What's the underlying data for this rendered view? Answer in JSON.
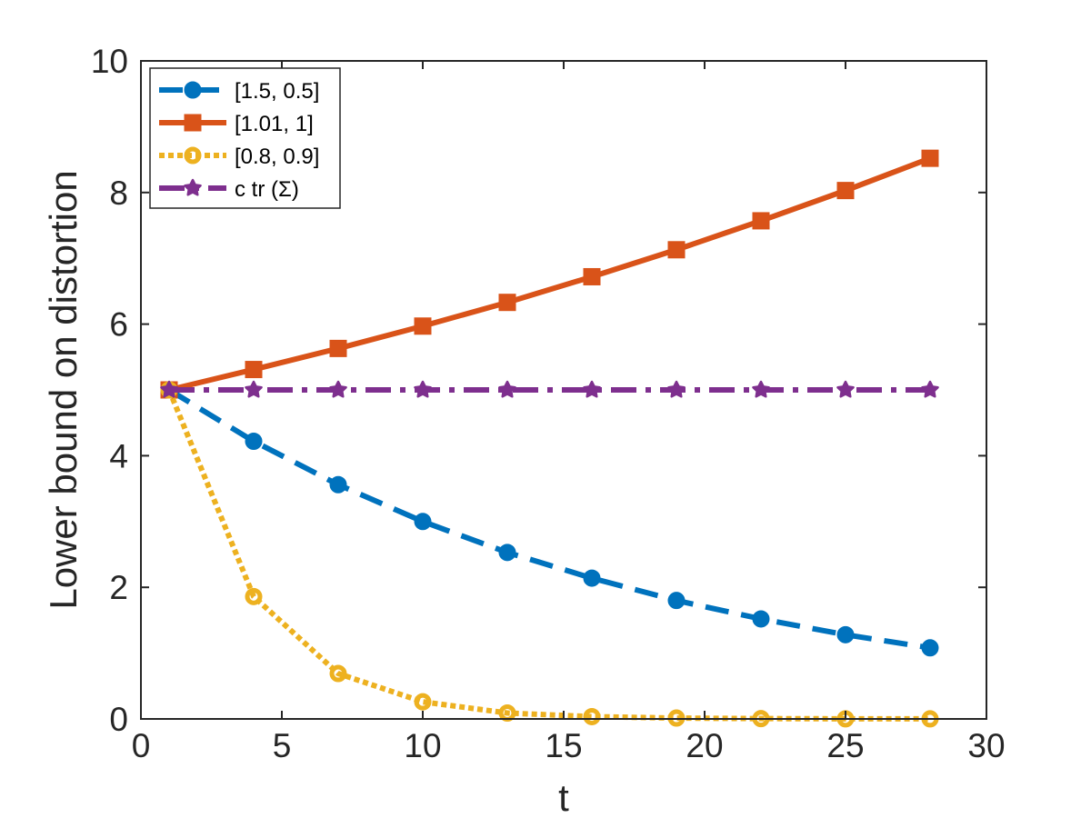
{
  "chart_data": {
    "type": "line",
    "xlabel": "t",
    "ylabel": "Lower bound on distortion",
    "xlim": [
      0,
      30
    ],
    "ylim": [
      0,
      10
    ],
    "xticks": [
      0,
      5,
      10,
      15,
      20,
      25,
      30
    ],
    "yticks": [
      0,
      2,
      4,
      6,
      8,
      10
    ],
    "xtick_labels": [
      "0",
      "5",
      "10",
      "15",
      "20",
      "25",
      "30"
    ],
    "ytick_labels": [
      "0",
      "2",
      "4",
      "6",
      "8",
      "10"
    ],
    "grid": false,
    "legend_position": "top-left",
    "x": [
      1,
      4,
      7,
      10,
      13,
      16,
      19,
      22,
      25,
      28
    ],
    "series": [
      {
        "name": "[1.5, 0.5]",
        "color": "#0072BD",
        "line_style": "dashed",
        "marker": "circle-filled",
        "values": [
          5.0,
          4.22,
          3.56,
          3.0,
          2.53,
          2.14,
          1.8,
          1.52,
          1.28,
          1.08
        ]
      },
      {
        "name": "[1.01, 1]",
        "color": "#D95319",
        "line_style": "solid",
        "marker": "square",
        "values": [
          5.0,
          5.31,
          5.63,
          5.97,
          6.33,
          6.72,
          7.13,
          7.57,
          8.03,
          8.52
        ]
      },
      {
        "name": "[0.8, 0.9]",
        "color": "#EDB120",
        "line_style": "dotted",
        "marker": "circle-open",
        "values": [
          5.0,
          1.86,
          0.69,
          0.26,
          0.09,
          0.035,
          0.013,
          0.005,
          0.002,
          0.001
        ]
      },
      {
        "name": "c tr (Σ)",
        "color": "#7E2F8E",
        "line_style": "dashdot",
        "marker": "star",
        "values": [
          5,
          5,
          5,
          5,
          5,
          5,
          5,
          5,
          5,
          5
        ]
      }
    ]
  }
}
